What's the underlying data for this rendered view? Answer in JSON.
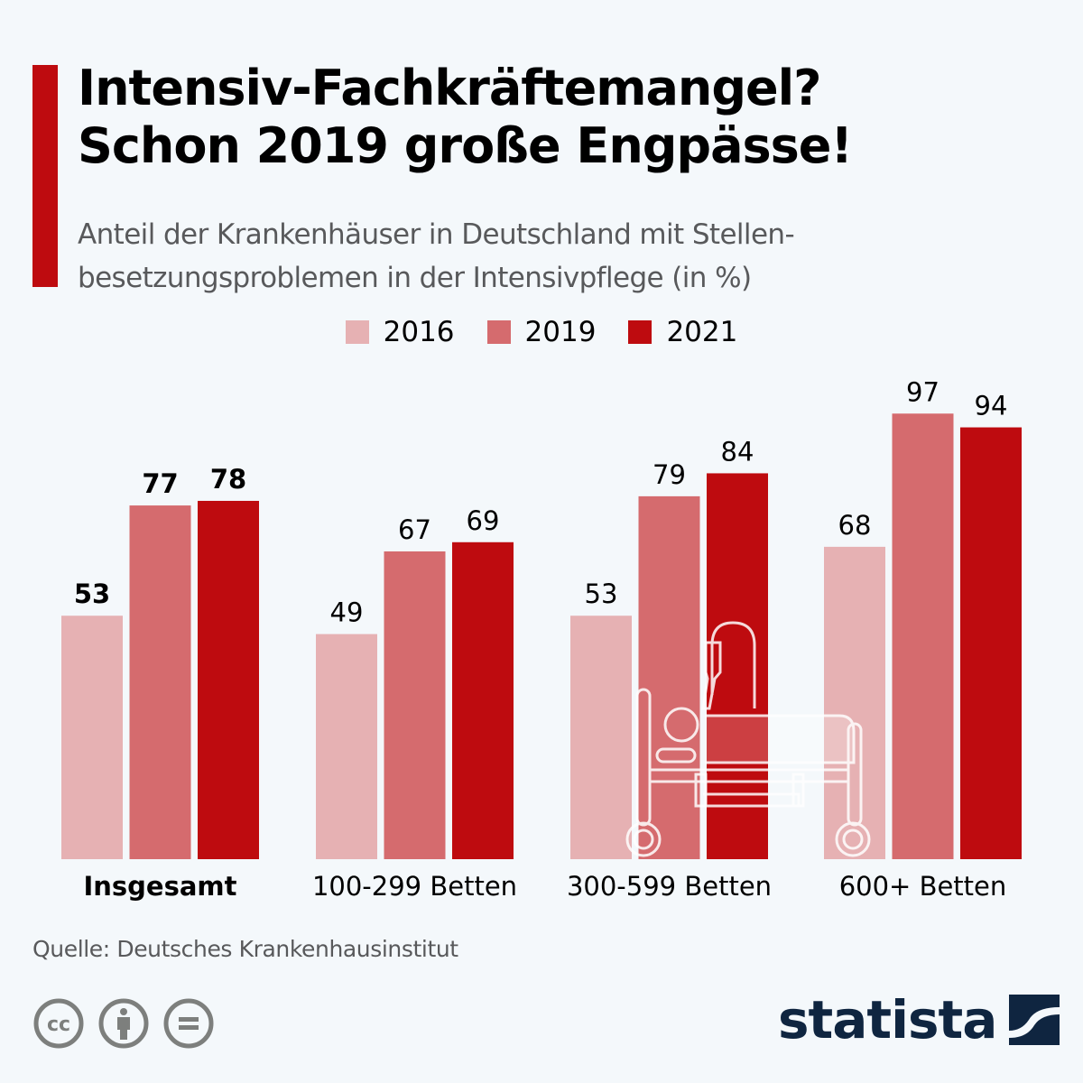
{
  "header": {
    "title_lines": [
      "Intensiv-Fachkräftemangel?",
      "Schon 2019 große Engpässe!"
    ],
    "subtitle_lines": [
      "Anteil der Krankenhäuser in Deutschland mit Stellen-",
      "besetzungsproblemen in der Intensivpflege (in %)"
    ],
    "accent_color": "#be0b0f"
  },
  "legend": [
    {
      "label": "2016",
      "color": "#e6b1b3"
    },
    {
      "label": "2019",
      "color": "#d56b6e"
    },
    {
      "label": "2021",
      "color": "#be0b0f"
    }
  ],
  "chart_data": {
    "type": "bar",
    "title": "Intensiv-Fachkräftemangel? Schon 2019 große Engpässe!",
    "subtitle": "Anteil der Krankenhäuser in Deutschland mit Stellenbesetzungsproblemen in der Intensivpflege (in %)",
    "xlabel": "",
    "ylabel": "in %",
    "ylim": [
      0,
      100
    ],
    "grid": false,
    "legend_position": "top-center",
    "categories": [
      "Insgesamt",
      "100-299 Betten",
      "300-599 Betten",
      "600+ Betten"
    ],
    "bold_categories": [
      "Insgesamt"
    ],
    "series": [
      {
        "name": "2016",
        "color": "#e6b1b3",
        "values": [
          53,
          49,
          53,
          68
        ]
      },
      {
        "name": "2019",
        "color": "#d56b6e",
        "values": [
          77,
          67,
          79,
          97
        ]
      },
      {
        "name": "2021",
        "color": "#be0b0f",
        "values": [
          78,
          69,
          84,
          94
        ]
      }
    ],
    "decoration": "hospital-bed-icon"
  },
  "footer": {
    "source": "Quelle: Deutsches Krankenhausinstitut",
    "license_icons": [
      "cc-icon",
      "attribution-icon",
      "no-derivatives-icon"
    ],
    "brand": "statista",
    "brand_color": "#0f2540"
  }
}
